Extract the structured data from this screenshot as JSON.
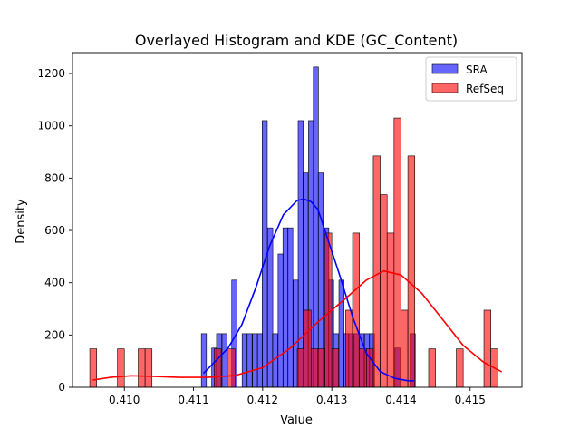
{
  "chart_data": {
    "type": "bar",
    "title": "Overlayed Histogram and KDE (GC_Content)",
    "xlabel": "Value",
    "ylabel": "Density",
    "xlim": [
      0.40925,
      0.41575
    ],
    "ylim": [
      0,
      1280
    ],
    "xticks": [
      0.41,
      0.411,
      0.412,
      0.413,
      0.414,
      0.415
    ],
    "xtick_labels": [
      "0.410",
      "0.411",
      "0.412",
      "0.413",
      "0.414",
      "0.415"
    ],
    "yticks": [
      0,
      200,
      400,
      600,
      800,
      1000,
      1200
    ],
    "ytick_labels": [
      "0",
      "200",
      "400",
      "600",
      "800",
      "1000",
      "1200"
    ],
    "grid": false,
    "legend_position": "top-right",
    "series": [
      {
        "name": "SRA",
        "color": "#0000ff",
        "kind": "histogram",
        "bin_width": 7.39e-05,
        "bins": [
          {
            "x": 0.41115,
            "y": 205
          },
          {
            "x": 0.4113,
            "y": 150
          },
          {
            "x": 0.41137,
            "y": 205
          },
          {
            "x": 0.41145,
            "y": 205
          },
          {
            "x": 0.41159,
            "y": 410
          },
          {
            "x": 0.41174,
            "y": 205
          },
          {
            "x": 0.41181,
            "y": 205
          },
          {
            "x": 0.41189,
            "y": 205
          },
          {
            "x": 0.41196,
            "y": 205
          },
          {
            "x": 0.41203,
            "y": 1020
          },
          {
            "x": 0.41211,
            "y": 610
          },
          {
            "x": 0.41218,
            "y": 205
          },
          {
            "x": 0.41226,
            "y": 510
          },
          {
            "x": 0.41233,
            "y": 610
          },
          {
            "x": 0.4124,
            "y": 610
          },
          {
            "x": 0.41248,
            "y": 410
          },
          {
            "x": 0.41255,
            "y": 1020
          },
          {
            "x": 0.41262,
            "y": 820
          },
          {
            "x": 0.4127,
            "y": 1020
          },
          {
            "x": 0.41277,
            "y": 1225
          },
          {
            "x": 0.41284,
            "y": 820
          },
          {
            "x": 0.41292,
            "y": 610
          },
          {
            "x": 0.41299,
            "y": 410
          },
          {
            "x": 0.41306,
            "y": 205
          },
          {
            "x": 0.41314,
            "y": 410
          },
          {
            "x": 0.41321,
            "y": 205
          },
          {
            "x": 0.41328,
            "y": 205
          },
          {
            "x": 0.41336,
            "y": 205
          },
          {
            "x": 0.41343,
            "y": 205
          },
          {
            "x": 0.41351,
            "y": 205
          },
          {
            "x": 0.41358,
            "y": 205
          },
          {
            "x": 0.41395,
            "y": 150
          },
          {
            "x": 0.41417,
            "y": 205
          }
        ],
        "kde": {
          "x": [
            0.41115,
            0.4113,
            0.4115,
            0.4117,
            0.4119,
            0.4121,
            0.4123,
            0.4125,
            0.4126,
            0.4127,
            0.4128,
            0.4129,
            0.4131,
            0.4133,
            0.4135,
            0.4137,
            0.4139,
            0.4141,
            0.41418
          ],
          "y": [
            55,
            95,
            150,
            240,
            380,
            540,
            660,
            715,
            720,
            710,
            680,
            600,
            440,
            270,
            130,
            60,
            35,
            25,
            25
          ]
        }
      },
      {
        "name": "RefSeq",
        "color": "#ff0000",
        "kind": "histogram",
        "bin_width": 0.0001,
        "bins": [
          {
            "x": 0.40955,
            "y": 147
          },
          {
            "x": 0.40995,
            "y": 147
          },
          {
            "x": 0.41025,
            "y": 147
          },
          {
            "x": 0.41035,
            "y": 147
          },
          {
            "x": 0.41135,
            "y": 147
          },
          {
            "x": 0.41155,
            "y": 147
          },
          {
            "x": 0.41255,
            "y": 147
          },
          {
            "x": 0.41265,
            "y": 295
          },
          {
            "x": 0.41275,
            "y": 147
          },
          {
            "x": 0.41285,
            "y": 147
          },
          {
            "x": 0.41295,
            "y": 590
          },
          {
            "x": 0.41305,
            "y": 147
          },
          {
            "x": 0.41325,
            "y": 295
          },
          {
            "x": 0.41335,
            "y": 590
          },
          {
            "x": 0.41345,
            "y": 147
          },
          {
            "x": 0.41355,
            "y": 147
          },
          {
            "x": 0.41365,
            "y": 885
          },
          {
            "x": 0.41375,
            "y": 737
          },
          {
            "x": 0.41385,
            "y": 590
          },
          {
            "x": 0.41395,
            "y": 1030
          },
          {
            "x": 0.41405,
            "y": 295
          },
          {
            "x": 0.41415,
            "y": 885
          },
          {
            "x": 0.41445,
            "y": 147
          },
          {
            "x": 0.41485,
            "y": 147
          },
          {
            "x": 0.41525,
            "y": 295
          },
          {
            "x": 0.41535,
            "y": 147
          }
        ],
        "kde": {
          "x": [
            0.40955,
            0.4098,
            0.4101,
            0.4104,
            0.4108,
            0.4112,
            0.4116,
            0.412,
            0.4124,
            0.4128,
            0.4132,
            0.4135,
            0.41375,
            0.414,
            0.4143,
            0.4146,
            0.4149,
            0.4152,
            0.41545
          ],
          "y": [
            28,
            38,
            44,
            42,
            38,
            38,
            45,
            75,
            150,
            250,
            340,
            410,
            445,
            430,
            360,
            260,
            160,
            95,
            60
          ]
        }
      }
    ]
  }
}
